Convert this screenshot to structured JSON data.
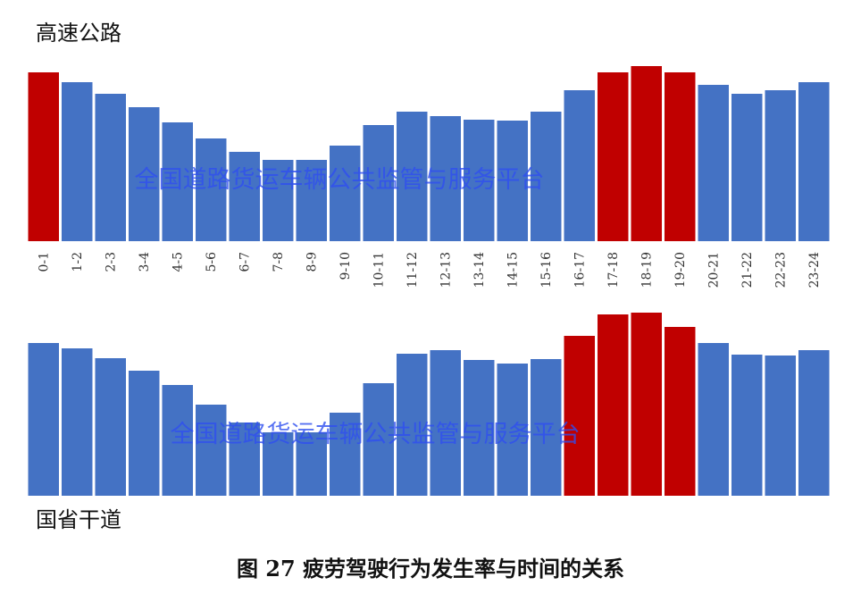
{
  "chart_data": [
    {
      "type": "bar",
      "title": "高速公路",
      "watermark": "全国道路货运车辆公共监管与服务平台",
      "categories": [
        "0-1",
        "1-2",
        "2-3",
        "3-4",
        "4-5",
        "5-6",
        "6-7",
        "7-8",
        "8-9",
        "9-10",
        "10-11",
        "11-12",
        "12-13",
        "13-14",
        "14-15",
        "15-16",
        "16-17",
        "17-18",
        "18-19",
        "19-20",
        "20-21",
        "21-22",
        "22-23",
        "23-24"
      ],
      "values": [
        189,
        178,
        165,
        150,
        133,
        115,
        100,
        91,
        91,
        107,
        130,
        145,
        140,
        136,
        135,
        145,
        169,
        189,
        196,
        189,
        175,
        165,
        169,
        178
      ],
      "colors": [
        "#c00000",
        "#4472c4",
        "#4472c4",
        "#4472c4",
        "#4472c4",
        "#4472c4",
        "#4472c4",
        "#4472c4",
        "#4472c4",
        "#4472c4",
        "#4472c4",
        "#4472c4",
        "#4472c4",
        "#4472c4",
        "#4472c4",
        "#4472c4",
        "#4472c4",
        "#c00000",
        "#c00000",
        "#c00000",
        "#4472c4",
        "#4472c4",
        "#4472c4",
        "#4472c4"
      ],
      "ylim": [
        0,
        200
      ]
    },
    {
      "type": "bar",
      "title": "国省干道",
      "watermark": "全国道路货运车辆公共监管与服务平台",
      "values": [
        171,
        165,
        154,
        140,
        124,
        102,
        82,
        71,
        71,
        93,
        126,
        159,
        163,
        152,
        148,
        153,
        179,
        203,
        205,
        189,
        171,
        158,
        157,
        163
      ],
      "colors": [
        "#4472c4",
        "#4472c4",
        "#4472c4",
        "#4472c4",
        "#4472c4",
        "#4472c4",
        "#4472c4",
        "#4472c4",
        "#4472c4",
        "#4472c4",
        "#4472c4",
        "#4472c4",
        "#4472c4",
        "#4472c4",
        "#4472c4",
        "#4472c4",
        "#c00000",
        "#c00000",
        "#c00000",
        "#c00000",
        "#4472c4",
        "#4472c4",
        "#4472c4",
        "#4472c4"
      ],
      "ylim": [
        0,
        210
      ]
    }
  ],
  "caption": "图 27 疲劳驾驶行为发生率与时间的关系"
}
